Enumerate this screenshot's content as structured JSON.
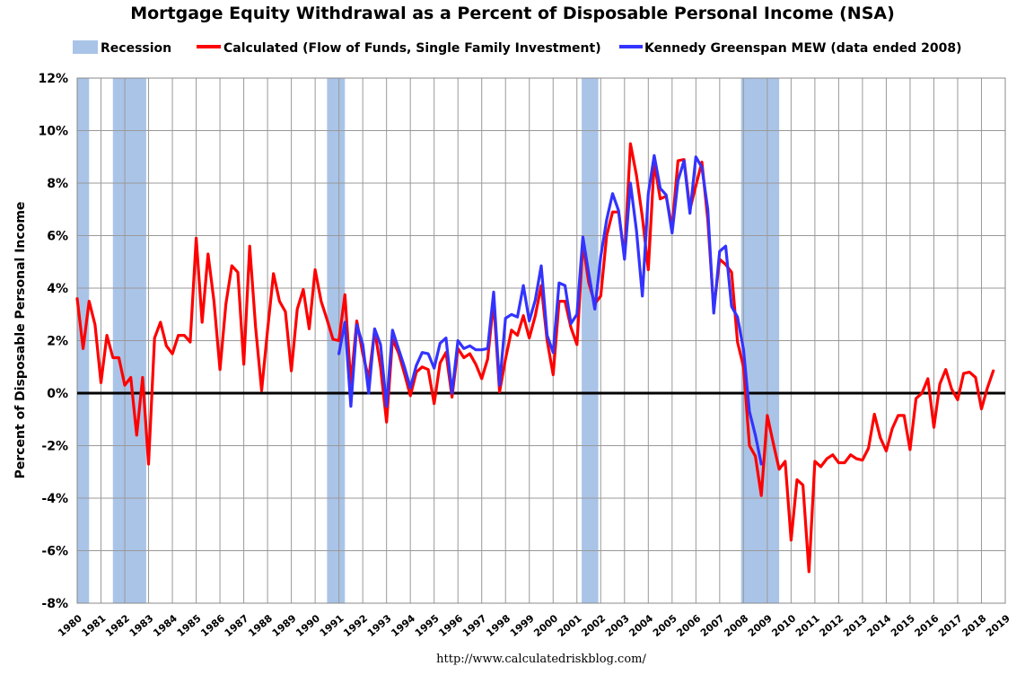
{
  "chart_data": {
    "type": "line",
    "title": "Mortgage Equity Withdrawal as a Percent of Disposable Personal Income (NSA)",
    "ylabel": "Percent of Disposable Personal Income",
    "xlabel": "",
    "source": "http://www.calculatedriskblog.com/",
    "xlim": [
      1980,
      2019
    ],
    "ylim": [
      -8,
      12
    ],
    "grid": true,
    "legend_position": "top",
    "x_ticks": [
      1980,
      1981,
      1982,
      1983,
      1984,
      1985,
      1986,
      1987,
      1988,
      1989,
      1990,
      1991,
      1992,
      1993,
      1994,
      1995,
      1996,
      1997,
      1998,
      1999,
      2000,
      2001,
      2002,
      2003,
      2004,
      2005,
      2006,
      2007,
      2008,
      2009,
      2010,
      2011,
      2012,
      2013,
      2014,
      2015,
      2016,
      2017,
      2018,
      2019
    ],
    "y_ticks": [
      {
        "value": 12,
        "label": "12%"
      },
      {
        "value": 10,
        "label": "10%"
      },
      {
        "value": 8,
        "label": "8%"
      },
      {
        "value": 6,
        "label": "6%"
      },
      {
        "value": 4,
        "label": "4%"
      },
      {
        "value": 2,
        "label": "2%"
      },
      {
        "value": 0,
        "label": "0%"
      },
      {
        "value": -2,
        "label": "-2%"
      },
      {
        "value": -4,
        "label": "-4%"
      },
      {
        "value": -6,
        "label": "-6%"
      },
      {
        "value": -8,
        "label": "-8%"
      }
    ],
    "recession": {
      "name": "Recession",
      "color": "#aac4e8",
      "periods": [
        [
          1980.0,
          1980.5
        ],
        [
          1981.5,
          1982.9
        ],
        [
          1990.5,
          1991.25
        ],
        [
          2001.2,
          2001.9
        ],
        [
          2007.9,
          2009.5
        ]
      ]
    },
    "series": [
      {
        "name": "Calculated (Flow of Funds, Single Family Investment)",
        "color": "#ff0000",
        "x": [
          1980.0,
          1980.25,
          1980.5,
          1980.75,
          1981.0,
          1981.25,
          1981.5,
          1981.75,
          1982.0,
          1982.25,
          1982.5,
          1982.75,
          1983.0,
          1983.25,
          1983.5,
          1983.75,
          1984.0,
          1984.25,
          1984.5,
          1984.75,
          1985.0,
          1985.25,
          1985.5,
          1985.75,
          1986.0,
          1986.25,
          1986.5,
          1986.75,
          1987.0,
          1987.25,
          1987.5,
          1987.75,
          1988.0,
          1988.25,
          1988.5,
          1988.75,
          1989.0,
          1989.25,
          1989.5,
          1989.75,
          1990.0,
          1990.25,
          1990.5,
          1990.75,
          1991.0,
          1991.25,
          1991.5,
          1991.75,
          1992.0,
          1992.25,
          1992.5,
          1992.75,
          1993.0,
          1993.25,
          1993.5,
          1993.75,
          1994.0,
          1994.25,
          1994.5,
          1994.75,
          1995.0,
          1995.25,
          1995.5,
          1995.75,
          1996.0,
          1996.25,
          1996.5,
          1996.75,
          1997.0,
          1997.25,
          1997.5,
          1997.75,
          1998.0,
          1998.25,
          1998.5,
          1998.75,
          1999.0,
          1999.25,
          1999.5,
          1999.75,
          2000.0,
          2000.25,
          2000.5,
          2000.75,
          2001.0,
          2001.25,
          2001.5,
          2001.75,
          2002.0,
          2002.25,
          2002.5,
          2002.75,
          2003.0,
          2003.25,
          2003.5,
          2003.75,
          2004.0,
          2004.25,
          2004.5,
          2004.75,
          2005.0,
          2005.25,
          2005.5,
          2005.75,
          2006.0,
          2006.25,
          2006.5,
          2006.75,
          2007.0,
          2007.25,
          2007.5,
          2007.75,
          2008.0,
          2008.25,
          2008.5,
          2008.75,
          2009.0,
          2009.25,
          2009.5,
          2009.75,
          2010.0,
          2010.25,
          2010.5,
          2010.75,
          2011.0,
          2011.25,
          2011.5,
          2011.75,
          2012.0,
          2012.25,
          2012.5,
          2012.75,
          2013.0,
          2013.25,
          2013.5,
          2013.75,
          2014.0,
          2014.25,
          2014.5,
          2014.75,
          2015.0,
          2015.25,
          2015.5,
          2015.75,
          2016.0,
          2016.25,
          2016.5,
          2016.75,
          2017.0,
          2017.25,
          2017.5,
          2017.75,
          2018.0,
          2018.25,
          2018.5
        ],
        "values": [
          3.6,
          1.7,
          3.5,
          2.6,
          0.4,
          2.2,
          1.35,
          1.35,
          0.3,
          0.6,
          -1.6,
          0.6,
          -2.7,
          2.1,
          2.7,
          1.8,
          1.5,
          2.2,
          2.2,
          1.95,
          5.9,
          2.7,
          5.3,
          3.5,
          0.9,
          3.4,
          4.85,
          4.6,
          1.1,
          5.6,
          2.5,
          0.1,
          2.4,
          4.55,
          3.5,
          3.1,
          0.85,
          3.2,
          3.95,
          2.45,
          4.7,
          3.5,
          2.8,
          2.05,
          2.0,
          3.75,
          0.35,
          2.75,
          1.5,
          0.55,
          2.4,
          1.0,
          -1.1,
          2.05,
          1.55,
          0.75,
          -0.1,
          0.8,
          1.0,
          0.9,
          -0.4,
          1.15,
          1.55,
          -0.15,
          1.7,
          1.35,
          1.5,
          1.1,
          0.55,
          1.3,
          3.5,
          0.05,
          1.3,
          2.4,
          2.2,
          2.95,
          2.1,
          2.95,
          4.1,
          2.0,
          0.7,
          3.5,
          3.5,
          2.5,
          1.85,
          5.7,
          4.2,
          3.4,
          3.7,
          6.0,
          6.9,
          6.9,
          5.2,
          9.5,
          8.3,
          6.7,
          4.7,
          8.8,
          7.4,
          7.5,
          6.3,
          8.85,
          8.9,
          7.0,
          7.9,
          8.8,
          6.6,
          3.2,
          5.1,
          4.9,
          4.6,
          1.95,
          1.0,
          -2.0,
          -2.4,
          -3.9,
          -0.85,
          -1.9,
          -2.9,
          -2.6,
          -5.6,
          -3.3,
          -3.5,
          -6.8,
          -2.6,
          -2.8,
          -2.5,
          -2.35,
          -2.65,
          -2.65,
          -2.35,
          -2.5,
          -2.55,
          -2.1,
          -0.8,
          -1.7,
          -2.2,
          -1.35,
          -0.85,
          -0.85,
          -2.15,
          -0.2,
          0.0,
          0.55,
          -1.3,
          0.35,
          0.9,
          0.15,
          -0.25,
          0.75,
          0.8,
          0.6,
          -0.6,
          0.2,
          0.85
        ]
      },
      {
        "name": "Kennedy Greenspan MEW (data ended 2008)",
        "color": "#3333ff",
        "x": [
          1991.0,
          1991.25,
          1991.5,
          1991.75,
          1992.0,
          1992.25,
          1992.5,
          1992.75,
          1993.0,
          1993.25,
          1993.5,
          1993.75,
          1994.0,
          1994.25,
          1994.5,
          1994.75,
          1995.0,
          1995.25,
          1995.5,
          1995.75,
          1996.0,
          1996.25,
          1996.5,
          1996.75,
          1997.0,
          1997.25,
          1997.5,
          1997.75,
          1998.0,
          1998.25,
          1998.5,
          1998.75,
          1999.0,
          1999.25,
          1999.5,
          1999.75,
          2000.0,
          2000.25,
          2000.5,
          2000.75,
          2001.0,
          2001.25,
          2001.5,
          2001.75,
          2002.0,
          2002.25,
          2002.5,
          2002.75,
          2003.0,
          2003.25,
          2003.5,
          2003.75,
          2004.0,
          2004.25,
          2004.5,
          2004.75,
          2005.0,
          2005.25,
          2005.5,
          2005.75,
          2006.0,
          2006.25,
          2006.5,
          2006.75,
          2007.0,
          2007.25,
          2007.5,
          2007.75,
          2008.0,
          2008.25,
          2008.5,
          2008.75
        ],
        "values": [
          1.5,
          2.7,
          -0.5,
          2.6,
          1.85,
          0.0,
          2.45,
          1.85,
          -0.5,
          2.4,
          1.7,
          1.0,
          0.2,
          1.05,
          1.55,
          1.5,
          0.95,
          1.9,
          2.1,
          0.0,
          2.0,
          1.7,
          1.8,
          1.65,
          1.65,
          1.7,
          3.85,
          0.3,
          2.85,
          3.0,
          2.9,
          4.1,
          2.75,
          3.55,
          4.85,
          2.2,
          1.55,
          4.2,
          4.1,
          2.65,
          3.0,
          5.95,
          4.55,
          3.2,
          5.2,
          6.6,
          7.6,
          6.95,
          5.1,
          8.0,
          6.2,
          3.7,
          7.6,
          9.05,
          7.8,
          7.55,
          6.1,
          8.1,
          8.85,
          6.85,
          9.0,
          8.6,
          7.0,
          3.05,
          5.4,
          5.6,
          3.3,
          2.9,
          1.65,
          -0.7,
          -1.6,
          -2.7
        ]
      }
    ]
  }
}
